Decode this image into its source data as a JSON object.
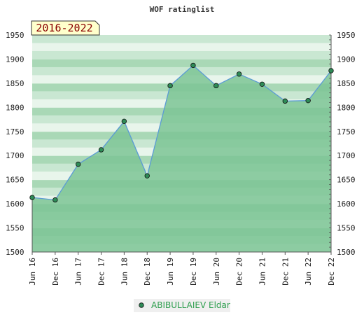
{
  "chart_data": {
    "type": "area",
    "title": "WOF ratinglist",
    "period_badge": "2016-2022",
    "categories": [
      "Jun 16",
      "Dec 16",
      "Jun 17",
      "Dec 17",
      "Jun 18",
      "Dec 18",
      "Jun 19",
      "Dec 19",
      "Jun 20",
      "Dec 20",
      "Jun 21",
      "Dec 21",
      "Jun 22",
      "Dec 22"
    ],
    "series": [
      {
        "name": "ABIBULLAIEV Eldar",
        "values": [
          1613,
          1608,
          1682,
          1712,
          1771,
          1658,
          1845,
          1887,
          1845,
          1869,
          1848,
          1813,
          1814,
          1876
        ]
      }
    ],
    "ylim": [
      1500,
      1950
    ],
    "yticks": [
      1500,
      1550,
      1600,
      1650,
      1700,
      1750,
      1800,
      1850,
      1900,
      1950
    ],
    "y_axis_sides": "both",
    "legend_position": "bottom",
    "colors": {
      "band_light": "#e8f5eb",
      "band_mid": "#c9e7d2",
      "band_dark": "#a9d8b6",
      "area_fill": "#7cc495",
      "line": "#5b9bd5",
      "marker": "#2e8b57",
      "badge_bg": "#ffffcc",
      "badge_text": "#8b0000",
      "legend_bg": "#efefef",
      "legend_text": "#2e9e4e"
    }
  }
}
